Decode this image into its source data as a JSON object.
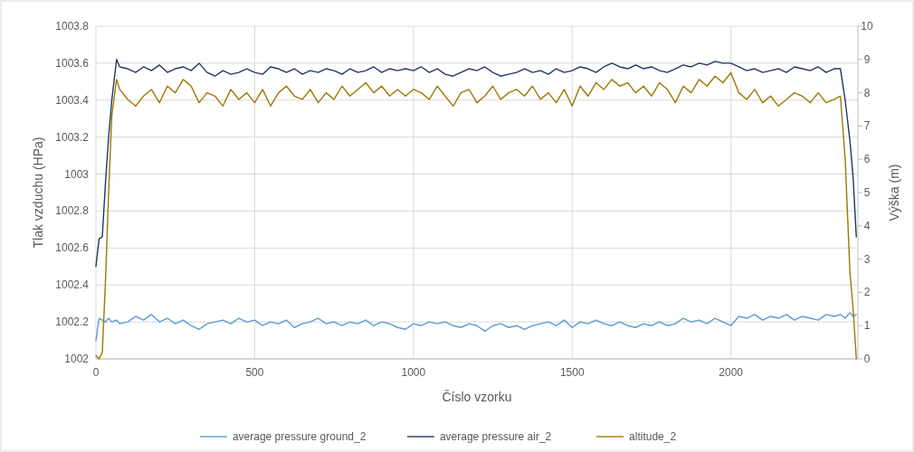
{
  "chart_data": {
    "type": "line",
    "xlabel": "Číslo vzorku",
    "ylabel": "Tlak vzduchu (HPa)",
    "y2label": "Výška (m)",
    "x": [
      0,
      10,
      20,
      30,
      40,
      50,
      65,
      75,
      100,
      125,
      150,
      175,
      200,
      225,
      250,
      275,
      300,
      325,
      350,
      375,
      400,
      425,
      450,
      475,
      500,
      525,
      550,
      575,
      600,
      625,
      650,
      675,
      700,
      725,
      750,
      775,
      800,
      825,
      850,
      875,
      900,
      925,
      950,
      975,
      1000,
      1025,
      1050,
      1075,
      1100,
      1125,
      1150,
      1175,
      1200,
      1225,
      1250,
      1275,
      1300,
      1325,
      1350,
      1375,
      1400,
      1425,
      1450,
      1475,
      1500,
      1525,
      1550,
      1575,
      1600,
      1625,
      1650,
      1675,
      1700,
      1725,
      1750,
      1775,
      1800,
      1825,
      1850,
      1875,
      1900,
      1925,
      1950,
      1975,
      2000,
      2025,
      2050,
      2075,
      2100,
      2125,
      2150,
      2175,
      2200,
      2225,
      2250,
      2275,
      2300,
      2325,
      2345,
      2360,
      2375,
      2385,
      2395
    ],
    "series": [
      {
        "name": "average pressure ground_2",
        "color": "#5b9bd5",
        "axis": "y",
        "values": [
          1002.1,
          1002.22,
          1002.21,
          1002.2,
          1002.22,
          1002.2,
          1002.21,
          1002.19,
          1002.2,
          1002.23,
          1002.21,
          1002.24,
          1002.2,
          1002.22,
          1002.19,
          1002.21,
          1002.18,
          1002.16,
          1002.19,
          1002.2,
          1002.21,
          1002.19,
          1002.22,
          1002.2,
          1002.21,
          1002.18,
          1002.2,
          1002.19,
          1002.21,
          1002.17,
          1002.19,
          1002.2,
          1002.22,
          1002.19,
          1002.2,
          1002.18,
          1002.2,
          1002.19,
          1002.21,
          1002.18,
          1002.2,
          1002.19,
          1002.17,
          1002.16,
          1002.19,
          1002.18,
          1002.2,
          1002.19,
          1002.2,
          1002.18,
          1002.17,
          1002.19,
          1002.18,
          1002.15,
          1002.18,
          1002.19,
          1002.17,
          1002.18,
          1002.16,
          1002.18,
          1002.19,
          1002.2,
          1002.18,
          1002.21,
          1002.17,
          1002.2,
          1002.19,
          1002.21,
          1002.19,
          1002.18,
          1002.2,
          1002.18,
          1002.17,
          1002.19,
          1002.18,
          1002.2,
          1002.18,
          1002.19,
          1002.22,
          1002.2,
          1002.21,
          1002.19,
          1002.22,
          1002.2,
          1002.18,
          1002.23,
          1002.22,
          1002.24,
          1002.21,
          1002.23,
          1002.22,
          1002.24,
          1002.21,
          1002.23,
          1002.22,
          1002.21,
          1002.24,
          1002.23,
          1002.24,
          1002.22,
          1002.25,
          1002.23,
          1002.24
        ]
      },
      {
        "name": "average pressure air_2",
        "color": "#203864",
        "axis": "y",
        "values": [
          1002.5,
          1002.65,
          1002.66,
          1002.95,
          1003.2,
          1003.4,
          1003.62,
          1003.58,
          1003.57,
          1003.55,
          1003.58,
          1003.56,
          1003.59,
          1003.55,
          1003.57,
          1003.58,
          1003.56,
          1003.6,
          1003.55,
          1003.53,
          1003.56,
          1003.54,
          1003.55,
          1003.57,
          1003.55,
          1003.54,
          1003.58,
          1003.57,
          1003.55,
          1003.57,
          1003.54,
          1003.56,
          1003.55,
          1003.57,
          1003.56,
          1003.54,
          1003.57,
          1003.55,
          1003.56,
          1003.58,
          1003.55,
          1003.57,
          1003.56,
          1003.57,
          1003.56,
          1003.58,
          1003.55,
          1003.57,
          1003.54,
          1003.53,
          1003.55,
          1003.57,
          1003.56,
          1003.58,
          1003.55,
          1003.53,
          1003.54,
          1003.55,
          1003.57,
          1003.55,
          1003.56,
          1003.54,
          1003.57,
          1003.55,
          1003.56,
          1003.58,
          1003.57,
          1003.55,
          1003.58,
          1003.6,
          1003.58,
          1003.57,
          1003.59,
          1003.57,
          1003.58,
          1003.56,
          1003.55,
          1003.57,
          1003.59,
          1003.58,
          1003.6,
          1003.59,
          1003.61,
          1003.6,
          1003.6,
          1003.58,
          1003.56,
          1003.57,
          1003.55,
          1003.56,
          1003.57,
          1003.55,
          1003.58,
          1003.57,
          1003.56,
          1003.58,
          1003.55,
          1003.57,
          1003.57,
          1003.4,
          1003.18,
          1002.98,
          1002.66
        ]
      },
      {
        "name": "altitude_2",
        "color": "#9c7a00",
        "axis": "y2",
        "values": [
          0.1,
          0,
          0.2,
          2.3,
          5,
          7.3,
          8.4,
          8.1,
          7.8,
          7.6,
          7.9,
          8.1,
          7.7,
          8.2,
          8.0,
          8.4,
          8.2,
          7.7,
          8.0,
          7.9,
          7.6,
          8.1,
          7.8,
          8.0,
          7.7,
          8.1,
          7.6,
          8.0,
          8.2,
          7.9,
          7.8,
          8.1,
          7.7,
          8.0,
          7.8,
          8.2,
          7.9,
          8.1,
          8.3,
          8.0,
          8.2,
          7.9,
          8.1,
          7.9,
          8.1,
          8.0,
          7.8,
          8.2,
          7.9,
          7.6,
          8.0,
          8.1,
          7.7,
          7.9,
          8.2,
          7.8,
          8.0,
          8.1,
          7.9,
          8.2,
          7.8,
          8.0,
          7.7,
          8.1,
          7.6,
          8.2,
          7.9,
          8.3,
          8.1,
          8.4,
          8.2,
          8.3,
          8.0,
          8.2,
          7.9,
          8.3,
          8.1,
          7.7,
          8.2,
          8.0,
          8.4,
          8.2,
          8.5,
          8.3,
          8.6,
          8.0,
          7.8,
          8.1,
          7.7,
          7.9,
          7.6,
          7.8,
          8.0,
          7.9,
          7.7,
          8.0,
          7.7,
          7.8,
          7.9,
          6.0,
          2.6,
          1.5,
          0
        ]
      }
    ],
    "xlim": [
      0,
      2400
    ],
    "xticks": [
      0,
      500,
      1000,
      1500,
      2000
    ],
    "ylim": [
      1002,
      1003.8
    ],
    "yticks": [
      1002,
      1002.2,
      1002.4,
      1002.6,
      1002.8,
      1003,
      1003.2,
      1003.4,
      1003.6,
      1003.8
    ],
    "y2lim": [
      0,
      10
    ],
    "y2ticks": [
      0,
      1,
      2,
      3,
      4,
      5,
      6,
      7,
      8,
      9,
      10
    ],
    "grid": true,
    "legend": "bottom",
    "marker": "none",
    "line_style": "solid"
  }
}
